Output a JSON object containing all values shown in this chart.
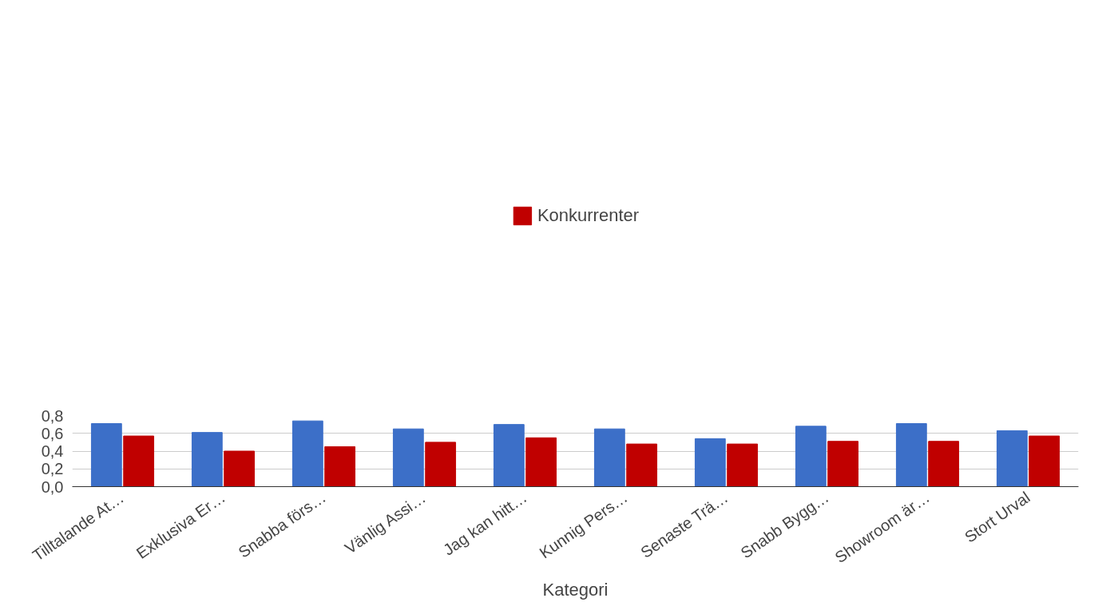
{
  "chart_data": {
    "type": "bar",
    "xlabel": "Kategori",
    "categories": [
      "Tilltalande At…",
      "Exklusiva Er…",
      "Snabba förs…",
      "Vänlig Assi…",
      "Jag kan hitt…",
      "Kunnig Pers…",
      "Senaste Trä…",
      "Snabb Bygg…",
      "Showroom är…",
      "Stort Urval"
    ],
    "series": [
      {
        "color": "#3c6fc8",
        "values": [
          0.71,
          0.61,
          0.74,
          0.65,
          0.7,
          0.65,
          0.54,
          0.68,
          0.71,
          0.63
        ]
      },
      {
        "name": "Konkurrenter",
        "color": "#c00000",
        "values": [
          0.57,
          0.4,
          0.45,
          0.5,
          0.55,
          0.48,
          0.48,
          0.51,
          0.51,
          0.57
        ]
      }
    ],
    "ylim": [
      0,
      0.8
    ],
    "yticks": [
      {
        "value": 0,
        "label": "0,0"
      },
      {
        "value": 0.2,
        "label": "0,2"
      },
      {
        "value": 0.4,
        "label": "0,4"
      },
      {
        "value": 0.6,
        "label": "0,6"
      },
      {
        "value": 0.8,
        "label": "0,8"
      }
    ],
    "grid": "y",
    "legend": "top"
  }
}
